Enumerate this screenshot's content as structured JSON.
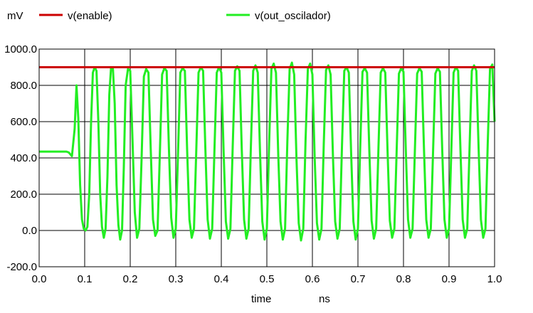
{
  "chart_data": {
    "type": "line",
    "ylabel": "mV",
    "xlabel": "time",
    "xunit": "ns",
    "xlim": [
      0.0,
      1.0
    ],
    "ylim": [
      -200.0,
      1000.0
    ],
    "grid": true,
    "legend_position": "top",
    "x_ticks": [
      "0.0",
      "0.1",
      "0.2",
      "0.3",
      "0.4",
      "0.5",
      "0.6",
      "0.7",
      "0.8",
      "0.9",
      "1.0"
    ],
    "y_ticks": [
      "1000.0",
      "800.0",
      "600.0",
      "400.0",
      "200.0",
      "0.0",
      "-200.0"
    ],
    "x_tick_values": [
      0.0,
      0.1,
      0.2,
      0.3,
      0.4,
      0.5,
      0.6,
      0.7,
      0.8,
      0.9,
      1.0
    ],
    "y_tick_values": [
      1000.0,
      800.0,
      600.0,
      400.0,
      200.0,
      0.0,
      -200.0
    ],
    "series": [
      {
        "name": "v(enable)",
        "color": "#cc0000",
        "x": [
          0.0,
          1.0
        ],
        "y": [
          900,
          900
        ]
      },
      {
        "name": "v(out_oscilador)",
        "color": "#22ee22",
        "x": [
          0.0,
          0.06,
          0.065,
          0.072,
          0.078,
          0.082,
          0.086,
          0.09,
          0.094,
          0.098,
          0.102,
          0.106,
          0.11,
          0.114,
          0.118,
          0.122,
          0.126,
          0.13,
          0.134,
          0.138,
          0.142,
          0.146,
          0.15,
          0.154,
          0.158,
          0.162,
          0.166,
          0.17,
          0.174,
          0.178,
          0.182,
          0.186,
          0.19,
          0.195,
          0.2,
          0.205,
          0.21,
          0.215,
          0.22,
          0.225,
          0.23,
          0.235,
          0.24,
          0.245,
          0.25,
          0.255,
          0.26,
          0.265,
          0.27,
          0.275,
          0.28,
          0.285,
          0.29,
          0.295,
          0.3,
          0.305,
          0.31,
          0.315,
          0.32,
          0.325,
          0.33,
          0.335,
          0.34,
          0.345,
          0.35,
          0.355,
          0.36,
          0.365,
          0.37,
          0.375,
          0.38,
          0.385,
          0.39,
          0.395,
          0.4,
          0.405,
          0.41,
          0.415,
          0.42,
          0.425,
          0.43,
          0.435,
          0.44,
          0.445,
          0.45,
          0.455,
          0.46,
          0.465,
          0.47,
          0.475,
          0.48,
          0.485,
          0.49,
          0.495,
          0.5,
          0.505,
          0.51,
          0.515,
          0.52,
          0.525,
          0.53,
          0.535,
          0.54,
          0.545,
          0.55,
          0.555,
          0.56,
          0.565,
          0.57,
          0.575,
          0.58,
          0.585,
          0.59,
          0.595,
          0.6,
          0.605,
          0.61,
          0.615,
          0.62,
          0.625,
          0.63,
          0.635,
          0.64,
          0.645,
          0.65,
          0.655,
          0.66,
          0.665,
          0.67,
          0.675,
          0.68,
          0.685,
          0.69,
          0.695,
          0.7,
          0.705,
          0.71,
          0.715,
          0.72,
          0.725,
          0.73,
          0.735,
          0.74,
          0.745,
          0.75,
          0.755,
          0.76,
          0.765,
          0.77,
          0.775,
          0.78,
          0.785,
          0.79,
          0.795,
          0.8,
          0.805,
          0.81,
          0.815,
          0.82,
          0.825,
          0.83,
          0.835,
          0.84,
          0.845,
          0.85,
          0.855,
          0.86,
          0.865,
          0.87,
          0.875,
          0.88,
          0.885,
          0.89,
          0.895,
          0.9,
          0.905,
          0.91,
          0.915,
          0.92,
          0.925,
          0.93,
          0.935,
          0.94,
          0.945,
          0.95,
          0.955,
          0.96,
          0.965,
          0.97,
          0.975,
          0.98,
          0.985,
          0.99,
          0.995,
          1.0
        ],
        "y": [
          435,
          435,
          430,
          410,
          560,
          800,
          620,
          250,
          60,
          10,
          0,
          20,
          200,
          600,
          870,
          900,
          880,
          600,
          200,
          20,
          -40,
          10,
          300,
          750,
          900,
          890,
          700,
          250,
          30,
          -50,
          0,
          350,
          800,
          890,
          880,
          500,
          100,
          -40,
          10,
          400,
          850,
          890,
          870,
          450,
          60,
          -30,
          0,
          420,
          860,
          895,
          880,
          450,
          70,
          -40,
          10,
          430,
          870,
          895,
          880,
          440,
          60,
          -40,
          10,
          440,
          870,
          900,
          880,
          450,
          60,
          -45,
          10,
          450,
          870,
          900,
          870,
          440,
          50,
          -45,
          10,
          460,
          880,
          905,
          880,
          440,
          60,
          -45,
          10,
          470,
          880,
          910,
          870,
          430,
          50,
          -50,
          10,
          480,
          890,
          920,
          870,
          420,
          50,
          -50,
          10,
          490,
          890,
          925,
          860,
          400,
          40,
          -55,
          10,
          500,
          890,
          920,
          860,
          400,
          40,
          -50,
          10,
          480,
          885,
          910,
          860,
          420,
          50,
          -45,
          10,
          470,
          880,
          900,
          870,
          430,
          50,
          -50,
          10,
          460,
          875,
          895,
          870,
          440,
          55,
          -45,
          10,
          450,
          870,
          895,
          870,
          440,
          55,
          -40,
          10,
          440,
          865,
          895,
          875,
          450,
          60,
          -40,
          10,
          440,
          865,
          895,
          875,
          450,
          60,
          -40,
          10,
          440,
          865,
          895,
          875,
          450,
          60,
          -40,
          10,
          440,
          870,
          900,
          880,
          450,
          60,
          -40,
          10,
          450,
          880,
          910,
          880,
          450,
          60,
          -40,
          10,
          480,
          890,
          915,
          600
        ]
      }
    ]
  }
}
